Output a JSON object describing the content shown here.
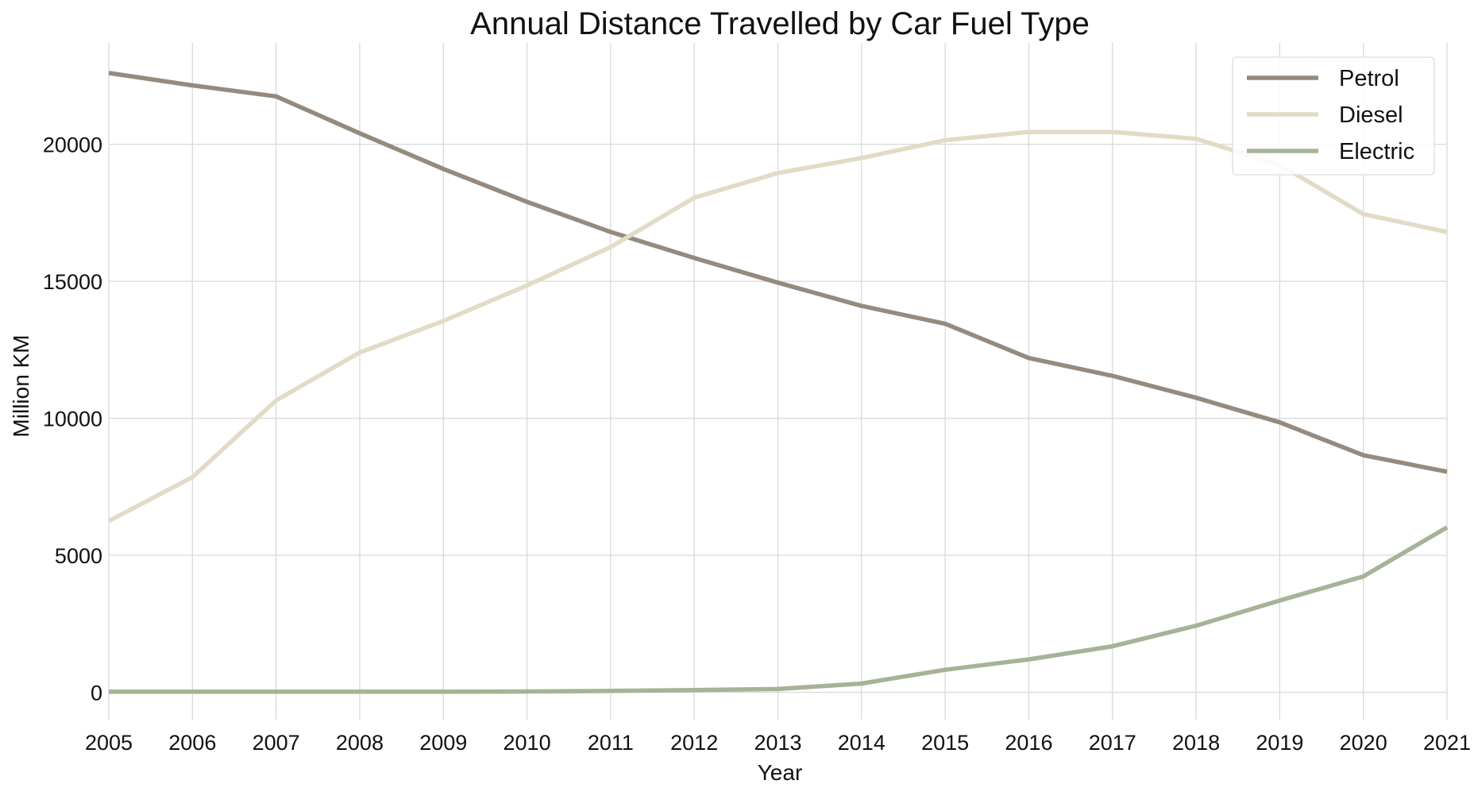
{
  "chart_data": {
    "type": "line",
    "title": "Annual Distance Travelled by Car Fuel Type",
    "xlabel": "Year",
    "ylabel": "Million KM",
    "x": [
      "2005",
      "2006",
      "2007",
      "2008",
      "2009",
      "2010",
      "2011",
      "2012",
      "2013",
      "2014",
      "2015",
      "2016",
      "2017",
      "2018",
      "2019",
      "2020",
      "2021"
    ],
    "xlim": [
      2005,
      2021
    ],
    "ylim": [
      -1000,
      23700
    ],
    "yticks": [
      0,
      5000,
      10000,
      15000,
      20000
    ],
    "grid": true,
    "legend_position": "top-right",
    "series": [
      {
        "name": "Petrol",
        "color": "#968a7e",
        "values": [
          22600,
          22150,
          21750,
          20400,
          19100,
          17900,
          16800,
          15850,
          14950,
          14100,
          13450,
          12200,
          11550,
          10750,
          9850,
          8650,
          8050
        ]
      },
      {
        "name": "Diesel",
        "color": "#e1dbc7",
        "values": [
          6250,
          7850,
          10650,
          12400,
          13550,
          14850,
          16250,
          18050,
          18950,
          19500,
          20150,
          20450,
          20450,
          20200,
          19250,
          17450,
          16800
        ]
      },
      {
        "name": "Electric",
        "color": "#a6b398",
        "values": [
          20,
          20,
          20,
          20,
          20,
          30,
          50,
          80,
          120,
          320,
          820,
          1200,
          1680,
          2430,
          3350,
          4230,
          6020
        ]
      }
    ]
  }
}
